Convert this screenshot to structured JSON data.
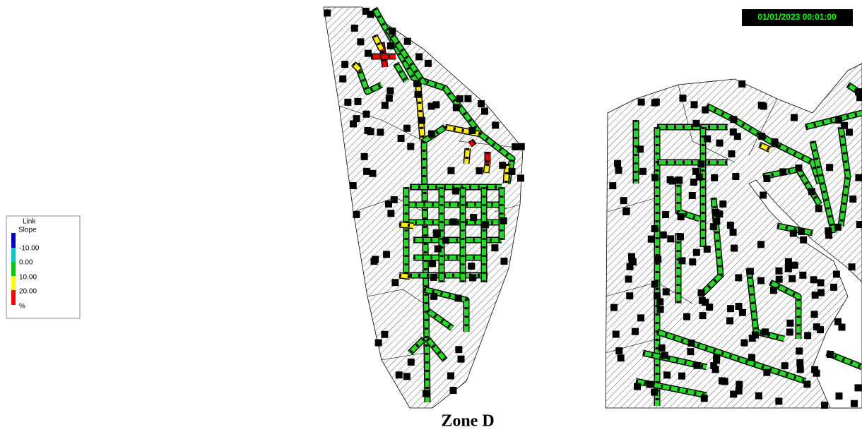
{
  "legend": {
    "title_1": "Link",
    "title_2": "Slope",
    "breaks": [
      "-10.00",
      "0.00",
      "10.00",
      "20.00"
    ],
    "unit": "%"
  },
  "timestamp": "01/01/2023 00:01:00",
  "caption": "Zone D"
}
